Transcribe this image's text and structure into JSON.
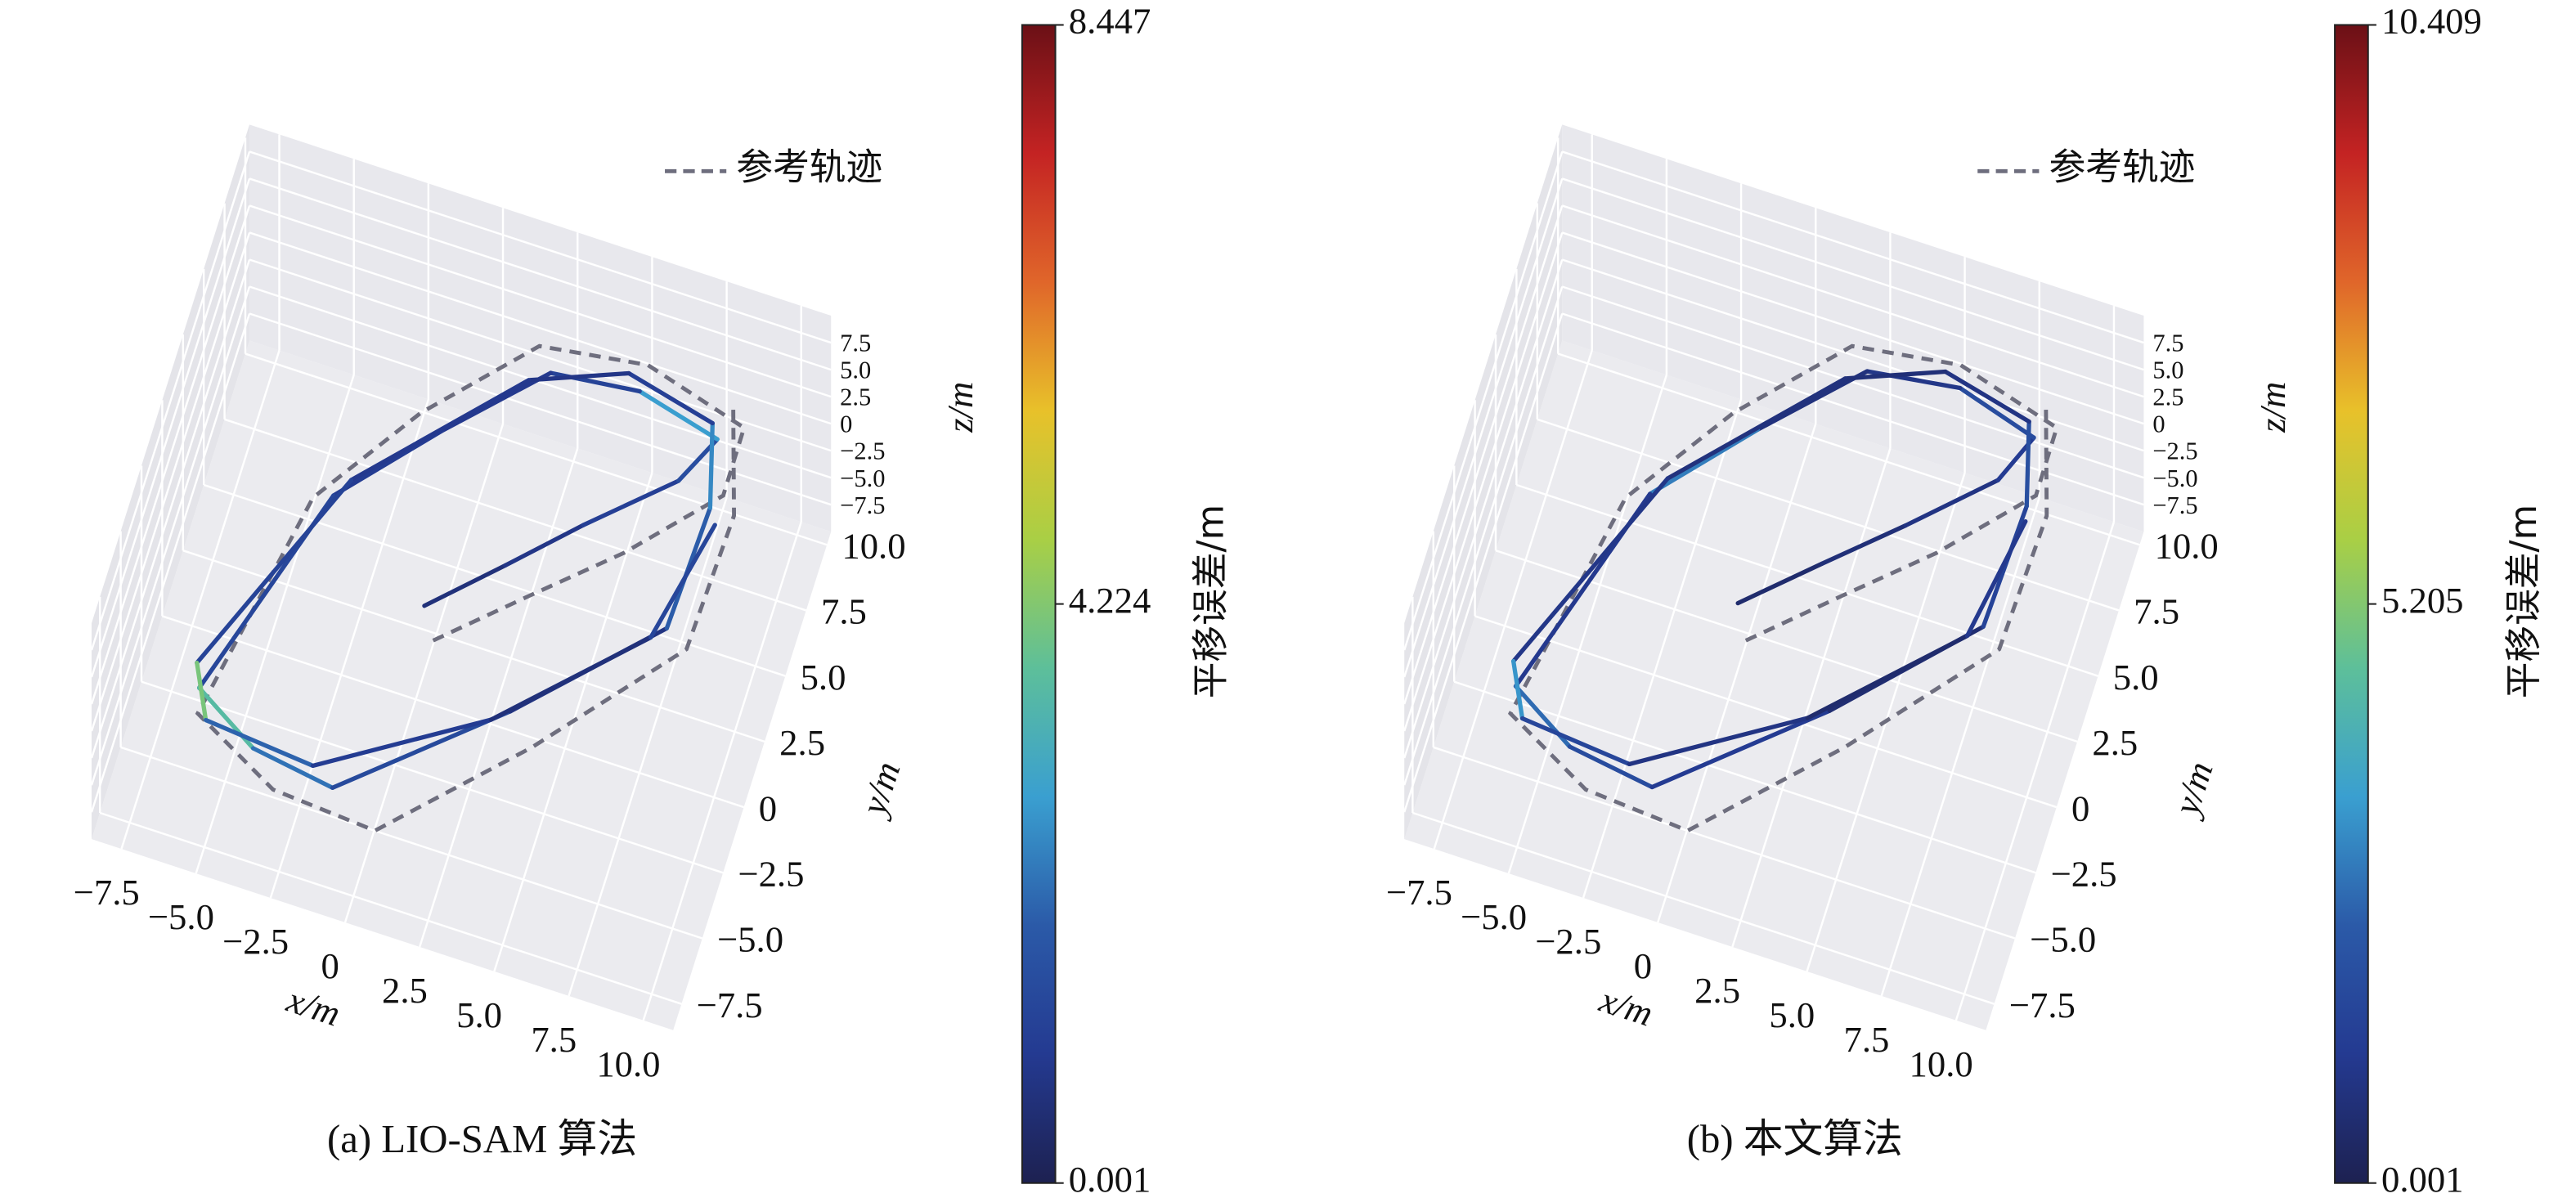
{
  "chart_data": [
    {
      "type": "line3d",
      "caption": "(a) LIO-SAM 算法",
      "x_label": "x/m",
      "y_label": "y/m",
      "z_label": "z/m",
      "xlim": [
        -8.5,
        11
      ],
      "ylim": [
        -8.5,
        10.5
      ],
      "zlim": [
        -10,
        10
      ],
      "xticks": [
        {
          "value": -7.5,
          "label": "−7.5"
        },
        {
          "value": -5,
          "label": "−5.0"
        },
        {
          "value": -2.5,
          "label": "−2.5"
        },
        0,
        2.5,
        {
          "value": 5,
          "label": "5.0"
        },
        7.5,
        {
          "value": 10,
          "label": "10.0"
        }
      ],
      "yticks": [
        {
          "value": -7.5,
          "label": "−7.5"
        },
        {
          "value": -5,
          "label": "−5.0"
        },
        {
          "value": -2.5,
          "label": "−2.5"
        },
        0,
        2.5,
        {
          "value": 5,
          "label": "5.0"
        },
        7.5,
        {
          "value": 10,
          "label": "10.0"
        }
      ],
      "zticks": [
        {
          "value": -7.5,
          "label": "−7.5"
        },
        {
          "value": -5,
          "label": "−5.0"
        },
        {
          "value": -2.5,
          "label": "−2.5"
        },
        0,
        2.5,
        {
          "value": 5,
          "label": "5.0"
        },
        7.5
      ],
      "series": [
        {
          "name": "参考轨迹",
          "color": "#6e6e7e",
          "x": [
            1,
            3.5,
            6,
            8.5,
            8.5,
            5,
            1.5,
            -1.5,
            -4,
            -5.5,
            -2.5,
            1,
            5,
            8.8,
            9,
            8
          ],
          "y": [
            -1.5,
            1,
            3.5,
            6.5,
            9,
            10,
            9.5,
            6,
            2,
            -6.5,
            -8.2,
            -8.5,
            -4,
            1,
            6,
            9.5
          ],
          "z": [
            0,
            0.3,
            0.5,
            0.8,
            1,
            1.2,
            1,
            0.6,
            0.2,
            -0.5,
            -0.7,
            -0.6,
            -0.2,
            0.2,
            0.6,
            1
          ]
        },
        {
          "x": [
            0.4,
            2.5,
            4.5,
            7,
            7.8,
            5,
            2.1,
            -0.7,
            -3.4,
            -5.7,
            -3.5,
            -0.7,
            4,
            8,
            8.2,
            7.5,
            4.5,
            1.5,
            -3,
            -6,
            -5.2,
            -1.5,
            3.5,
            7.6,
            8.5
          ],
          "y": [
            -0.4,
            1.8,
            4,
            6.5,
            8.3,
            9,
            8.7,
            5.6,
            2.3,
            -5.6,
            -7,
            -7.5,
            -3,
            1.5,
            6,
            8.8,
            9.5,
            8.2,
            3,
            -4.8,
            -6.6,
            -7,
            -3.5,
            1,
            5.5
          ],
          "z": [
            0,
            0.3,
            0.5,
            0.8,
            1,
            1.2,
            1,
            0.6,
            0.2,
            -0.5,
            -0.7,
            -0.6,
            -0.2,
            0.2,
            0.6,
            1,
            1.2,
            1,
            0.3,
            -0.4,
            -0.6,
            -0.5,
            -0.2,
            0.2,
            0.5
          ],
          "error": [
            0.6,
            0.8,
            1.1,
            1.5,
            2.8,
            1.2,
            0.9,
            1.0,
            1.3,
            3.6,
            2.2,
            1.4,
            0.7,
            1.9,
            2.5,
            1.1,
            0.8,
            0.9,
            1.2,
            4.1,
            2.0,
            1.0,
            0.6,
            1.3,
            1.7
          ]
        }
      ],
      "colorbar": {
        "label": "平移误差/m",
        "lim": [
          0.001,
          8.447
        ],
        "ticks": [
          0.001,
          4.224,
          8.447
        ],
        "colormap": [
          "#1d2151",
          "#243a91",
          "#2b5aa8",
          "#3a9fd0",
          "#5dbf9a",
          "#a9cf45",
          "#e8c12a",
          "#e0662a",
          "#c42323",
          "#6b1016"
        ]
      }
    },
    {
      "type": "line3d",
      "caption": "(b) 本文算法",
      "x_label": "x/m",
      "y_label": "y/m",
      "z_label": "z/m",
      "xlim": [
        -8.5,
        11
      ],
      "ylim": [
        -8.5,
        10.5
      ],
      "zlim": [
        -10,
        10
      ],
      "xticks": [
        {
          "value": -7.5,
          "label": "−7.5"
        },
        {
          "value": -5,
          "label": "−5.0"
        },
        {
          "value": -2.5,
          "label": "−2.5"
        },
        0,
        2.5,
        {
          "value": 5,
          "label": "5.0"
        },
        7.5,
        {
          "value": 10,
          "label": "10.0"
        }
      ],
      "yticks": [
        {
          "value": -7.5,
          "label": "−7.5"
        },
        {
          "value": -5,
          "label": "−5.0"
        },
        {
          "value": -2.5,
          "label": "−2.5"
        },
        0,
        2.5,
        {
          "value": 5,
          "label": "5.0"
        },
        7.5,
        {
          "value": 10,
          "label": "10.0"
        }
      ],
      "zticks": [
        {
          "value": -7.5,
          "label": "−7.5"
        },
        {
          "value": -5,
          "label": "−5.0"
        },
        {
          "value": -2.5,
          "label": "−2.5"
        },
        0,
        2.5,
        {
          "value": 5,
          "label": "5.0"
        },
        7.5
      ],
      "series": [
        {
          "name": "参考轨迹",
          "color": "#6e6e7e",
          "x": [
            1,
            3.5,
            6,
            8.5,
            8.5,
            5,
            1.5,
            -1.5,
            -4,
            -5.5,
            -2.5,
            1,
            5,
            8.8,
            9,
            8
          ],
          "y": [
            -1.5,
            1,
            3.5,
            6.5,
            9,
            10,
            9.5,
            6,
            2,
            -6.5,
            -8.2,
            -8.5,
            -4,
            1,
            6,
            9.5
          ],
          "z": [
            0,
            0.3,
            0.5,
            0.8,
            1,
            1.2,
            1,
            0.6,
            0.2,
            -0.5,
            -0.7,
            -0.6,
            -0.2,
            0.2,
            0.6,
            1
          ]
        },
        {
          "x": [
            0.4,
            2.6,
            4.8,
            7.2,
            7.9,
            5.2,
            2.2,
            -0.6,
            -3.3,
            -5.6,
            -3.4,
            -0.5,
            4.2,
            8.1,
            8.3,
            7.6,
            4.6,
            1.6,
            -2.9,
            -5.9,
            -5.1,
            -1.4,
            3.6,
            7.7,
            8.4
          ],
          "y": [
            -0.3,
            1.9,
            4.1,
            6.6,
            8.4,
            9.2,
            8.8,
            5.7,
            2.4,
            -5.5,
            -6.9,
            -7.4,
            -2.9,
            1.6,
            6.1,
            8.9,
            9.6,
            8.3,
            3.1,
            -4.7,
            -6.5,
            -6.9,
            -3.4,
            1.1,
            5.6
          ],
          "z": [
            0,
            0.3,
            0.5,
            0.8,
            1,
            1.2,
            1,
            0.6,
            0.2,
            -0.5,
            -0.7,
            -0.6,
            -0.2,
            0.2,
            0.6,
            1,
            1.2,
            1,
            0.3,
            -0.4,
            -0.6,
            -0.5,
            -0.2,
            0.2,
            0.5
          ],
          "error": [
            0.5,
            0.7,
            0.9,
            1.2,
            1.8,
            1.0,
            0.8,
            2.9,
            1.1,
            2.6,
            1.8,
            1.2,
            0.6,
            1.5,
            1.9,
            0.9,
            0.7,
            0.8,
            1.0,
            3.3,
            1.6,
            0.9,
            0.5,
            1.1,
            1.4
          ]
        }
      ],
      "colorbar": {
        "label": "平移误差/m",
        "lim": [
          0.001,
          10.409
        ],
        "ticks": [
          0.001,
          5.205,
          10.409
        ],
        "colormap": [
          "#1d2151",
          "#243a91",
          "#2b5aa8",
          "#3a9fd0",
          "#5dbf9a",
          "#a9cf45",
          "#e8c12a",
          "#e0662a",
          "#c42323",
          "#6b1016"
        ]
      }
    }
  ]
}
